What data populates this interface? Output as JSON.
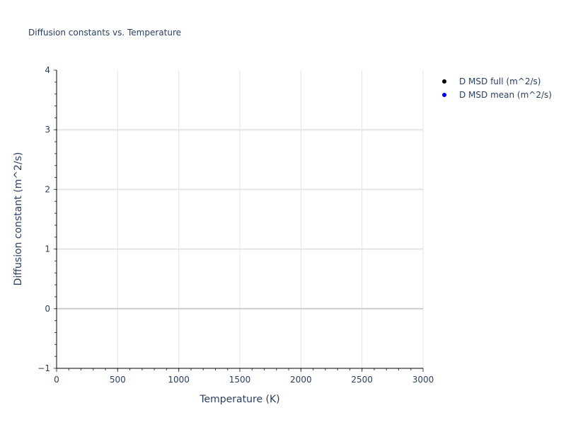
{
  "chart_data": {
    "type": "scatter",
    "title": "Diffusion constants vs. Temperature",
    "xlabel": "Temperature (K)",
    "ylabel": "Diffusion constant (m^2/s)",
    "xlim": [
      0,
      3000
    ],
    "ylim": [
      -1,
      4
    ],
    "xticks": [
      "0",
      "500",
      "1000",
      "1500",
      "2000",
      "2500",
      "3000"
    ],
    "yticks": [
      "−1",
      "0",
      "1",
      "2",
      "3",
      "4"
    ],
    "grid": true,
    "legend_position": "top-right",
    "series": [
      {
        "name": "D MSD full (m^2/s)",
        "color": "#000000",
        "x": [],
        "y": []
      },
      {
        "name": "D MSD mean (m^2/s)",
        "color": "#0000ff",
        "x": [],
        "y": []
      }
    ]
  }
}
